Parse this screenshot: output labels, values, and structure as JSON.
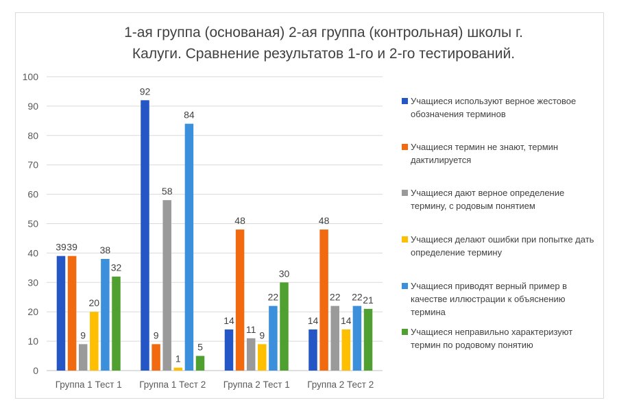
{
  "title_lines": [
    "1-ая группа (основаная)  2-ая группа (контрольная) школы г.",
    "Калуги. Сравнение результатов 1-го и 2-го тестирований."
  ],
  "colors": [
    "#2457c5",
    "#f26a10",
    "#9a9a9a",
    "#fdbf00",
    "#3c8fdb",
    "#4fa030"
  ],
  "chart_data": {
    "type": "bar",
    "title": "1-ая группа (основаная)  2-ая группа (контрольная) школы г. Калуги. Сравнение результатов 1-го и 2-го тестирований.",
    "categories": [
      "Группа 1 Тест 1",
      "Группа 1 Тест 2",
      "Группа 2 Тест 1",
      "Группа 2 Тест 2"
    ],
    "ylim": [
      0,
      100
    ],
    "yticks": [
      0,
      10,
      20,
      30,
      40,
      50,
      60,
      70,
      80,
      90,
      100
    ],
    "grid": true,
    "legend_position": "right",
    "series": [
      {
        "name": "Учащиеся используют верное жестовое обозначения терминов",
        "values": [
          39,
          92,
          14,
          14
        ]
      },
      {
        "name": "Учащиеся термин не знают, термин дактилируется",
        "values": [
          39,
          9,
          48,
          48
        ]
      },
      {
        "name": "Учащиеся дают верное определение термину, с родовым понятием",
        "values": [
          9,
          58,
          11,
          22
        ]
      },
      {
        "name": "Учащиеся делают ошибки при попытке дать определение термину",
        "values": [
          20,
          1,
          9,
          14
        ]
      },
      {
        "name": "Учащиеся приводят верный пример в качестве иллюстрации к объяснению термина",
        "values": [
          38,
          84,
          22,
          22
        ]
      },
      {
        "name": "Учащиеся неправильно характеризуют термин по родовому понятию",
        "values": [
          32,
          5,
          30,
          21
        ]
      }
    ]
  }
}
